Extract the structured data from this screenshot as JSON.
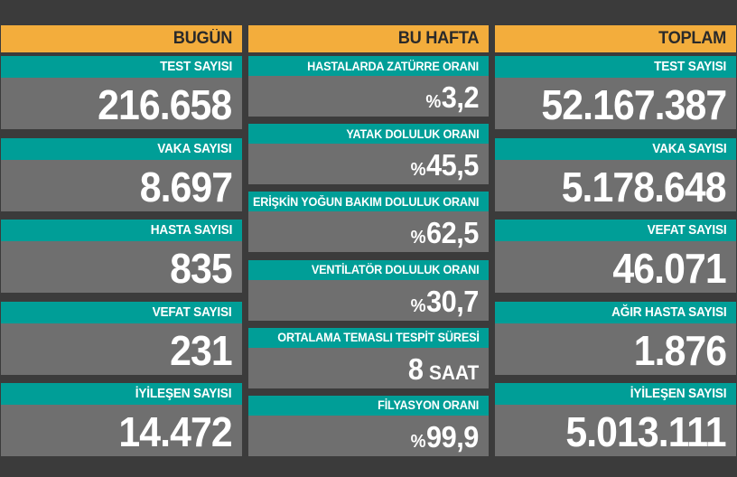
{
  "colors": {
    "background": "#3B3B3B",
    "header_bg": "#F3AD3C",
    "header_text": "#2A2A2A",
    "label_bg": "#009E97",
    "label_text": "#FFFFFF",
    "value_bg": "#6F6F6F",
    "value_text": "#FFFFFF"
  },
  "columns": [
    {
      "id": "bugun",
      "header": "BUGÜN",
      "cards": [
        {
          "label": "TEST SAYISI",
          "value": "216.658"
        },
        {
          "label": "VAKA SAYISI",
          "value": "8.697"
        },
        {
          "label": "HASTA SAYISI",
          "value": "835"
        },
        {
          "label": "VEFAT SAYISI",
          "value": "231"
        },
        {
          "label": "İYİLEŞEN SAYISI",
          "value": "14.472"
        }
      ]
    },
    {
      "id": "bu-hafta",
      "header": "BU HAFTA",
      "cards": [
        {
          "label": "HASTALARDA ZATÜRRE ORANI",
          "value_prefix": "%",
          "value": "3,2"
        },
        {
          "label": "YATAK DOLULUK ORANI",
          "value_prefix": "%",
          "value": "45,5"
        },
        {
          "label": "ERİŞKİN YOĞUN BAKIM DOLULUK ORANI",
          "value_prefix": "%",
          "value": "62,5"
        },
        {
          "label": "VENTİLATÖR DOLULUK ORANI",
          "value_prefix": "%",
          "value": "30,7"
        },
        {
          "label": "ORTALAMA TEMASLI TESPİT SÜRESİ",
          "value": "8",
          "value_suffix": "SAAT"
        },
        {
          "label": "FİLYASYON ORANI",
          "value_prefix": "%",
          "value": "99,9"
        }
      ]
    },
    {
      "id": "toplam",
      "header": "TOPLAM",
      "cards": [
        {
          "label": "TEST SAYISI",
          "value": "52.167.387"
        },
        {
          "label": "VAKA SAYISI",
          "value": "5.178.648"
        },
        {
          "label": "VEFAT SAYISI",
          "value": "46.071"
        },
        {
          "label": "AĞIR HASTA SAYISI",
          "value": "1.876"
        },
        {
          "label": "İYİLEŞEN SAYISI",
          "value": "5.013.111"
        }
      ]
    }
  ],
  "chart_data": [
    {
      "type": "table",
      "title": "BUGÜN",
      "rows": [
        [
          "TEST SAYISI",
          "216.658"
        ],
        [
          "VAKA SAYISI",
          "8.697"
        ],
        [
          "HASTA SAYISI",
          "835"
        ],
        [
          "VEFAT SAYISI",
          "231"
        ],
        [
          "İYİLEŞEN SAYISI",
          "14.472"
        ]
      ]
    },
    {
      "type": "table",
      "title": "BU HAFTA",
      "rows": [
        [
          "HASTALARDA ZATÜRRE ORANI",
          "%3,2"
        ],
        [
          "YATAK DOLULUK ORANI",
          "%45,5"
        ],
        [
          "ERİŞKİN YOĞUN BAKIM DOLULUK ORANI",
          "%62,5"
        ],
        [
          "VENTİLATÖR DOLULUK ORANI",
          "%30,7"
        ],
        [
          "ORTALAMA TEMASLI TESPİT SÜRESİ",
          "8 SAAT"
        ],
        [
          "FİLYASYON ORANI",
          "%99,9"
        ]
      ]
    },
    {
      "type": "table",
      "title": "TOPLAM",
      "rows": [
        [
          "TEST SAYISI",
          "52.167.387"
        ],
        [
          "VAKA SAYISI",
          "5.178.648"
        ],
        [
          "VEFAT SAYISI",
          "46.071"
        ],
        [
          "AĞIR HASTA SAYISI",
          "1.876"
        ],
        [
          "İYİLEŞEN SAYISI",
          "5.013.111"
        ]
      ]
    }
  ]
}
